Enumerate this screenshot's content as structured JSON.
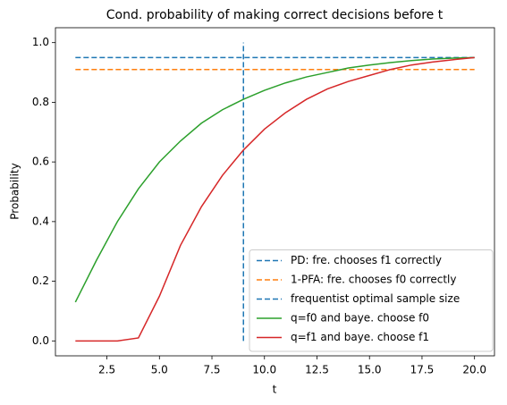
{
  "chart_data": {
    "type": "line",
    "title": "Cond. probability of making correct decisions before t",
    "xlabel": "t",
    "ylabel": "Probability",
    "xlim": [
      0.05,
      20.95
    ],
    "ylim": [
      -0.05,
      1.05
    ],
    "xticks": [
      {
        "value": 2.5,
        "label": "2.5"
      },
      {
        "value": 5,
        "label": "5.0"
      },
      {
        "value": 7.5,
        "label": "7.5"
      },
      {
        "value": 10,
        "label": "10.0"
      },
      {
        "value": 12.5,
        "label": "12.5"
      },
      {
        "value": 15,
        "label": "15.0"
      },
      {
        "value": 17.5,
        "label": "17.5"
      },
      {
        "value": 20,
        "label": "20.0"
      }
    ],
    "yticks": [
      {
        "value": 0,
        "label": "0.0"
      },
      {
        "value": 0.2,
        "label": "0.2"
      },
      {
        "value": 0.4,
        "label": "0.4"
      },
      {
        "value": 0.6,
        "label": "0.6"
      },
      {
        "value": 0.8,
        "label": "0.8"
      },
      {
        "value": 1,
        "label": "1.0"
      }
    ],
    "legend": "lower right",
    "series": [
      {
        "name": "PD: fre. chooses f1 correctly",
        "color": "#1f77b4",
        "linestyle": "dashed",
        "x": [
          1,
          20
        ],
        "values": [
          0.95,
          0.95
        ]
      },
      {
        "name": "1-PFA: fre. chooses f0 correctly",
        "color": "#ff7f0e",
        "linestyle": "dashed",
        "x": [
          1,
          20
        ],
        "values": [
          0.91,
          0.91
        ]
      },
      {
        "name": "frequentist optimal sample size",
        "color": "#1f77b4",
        "linestyle": "dashed",
        "x": [
          9,
          9
        ],
        "values": [
          0,
          1
        ]
      },
      {
        "name": "q=f0 and baye. choose f0",
        "color": "#2ca02c",
        "linestyle": "solid",
        "x": [
          1,
          2,
          3,
          4,
          5,
          6,
          7,
          8,
          9,
          10,
          11,
          12,
          13,
          14,
          15,
          16,
          17,
          18,
          19,
          20
        ],
        "values": [
          0.13,
          0.27,
          0.4,
          0.51,
          0.6,
          0.67,
          0.73,
          0.775,
          0.81,
          0.84,
          0.865,
          0.885,
          0.9,
          0.915,
          0.925,
          0.933,
          0.94,
          0.945,
          0.948,
          0.95
        ]
      },
      {
        "name": "q=f1 and baye. choose f1",
        "color": "#d62728",
        "linestyle": "solid",
        "x": [
          1,
          2,
          3,
          4,
          5,
          6,
          7,
          8,
          9,
          10,
          11,
          12,
          13,
          14,
          15,
          16,
          17,
          18,
          19,
          20
        ],
        "values": [
          0,
          0,
          0,
          0.01,
          0.15,
          0.32,
          0.45,
          0.555,
          0.64,
          0.71,
          0.765,
          0.81,
          0.845,
          0.87,
          0.89,
          0.91,
          0.925,
          0.935,
          0.943,
          0.95
        ]
      }
    ]
  }
}
